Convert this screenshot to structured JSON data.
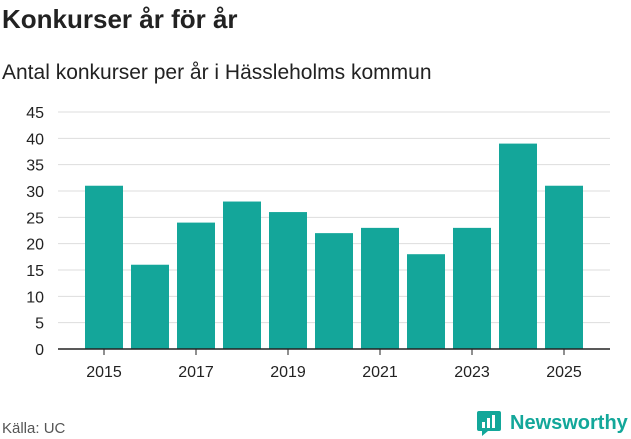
{
  "title": "Konkurser år för år",
  "subtitle": "Antal konkurser per år i Hässleholms kommun",
  "source": "Källa: UC",
  "brand": "Newsworthy",
  "colors": {
    "bar": "#14a69a",
    "brand": "#13a79a",
    "grid": "#dddddd"
  },
  "chart_data": {
    "type": "bar",
    "categories": [
      "2015",
      "2016",
      "2017",
      "2018",
      "2019",
      "2020",
      "2021",
      "2022",
      "2023",
      "2024",
      "2025"
    ],
    "values": [
      31,
      16,
      24,
      28,
      26,
      22,
      23,
      18,
      23,
      39,
      31
    ],
    "x_tick_labels": [
      "2015",
      "2017",
      "2019",
      "2021",
      "2023",
      "2025"
    ],
    "y_ticks": [
      0,
      5,
      10,
      15,
      20,
      25,
      30,
      35,
      40,
      45
    ],
    "ylim": [
      0,
      45
    ],
    "grid": true,
    "legend": "none"
  }
}
